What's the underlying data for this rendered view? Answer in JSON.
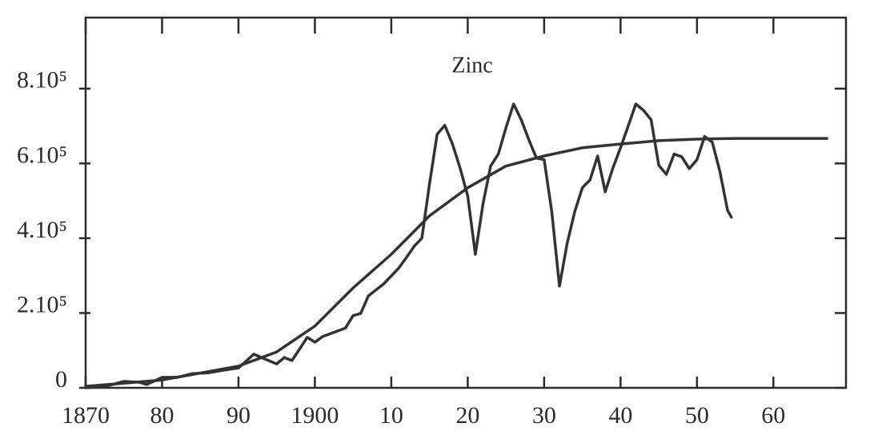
{
  "chart_data": {
    "type": "line",
    "title": "Zinc",
    "xlim": [
      1870,
      1969.5
    ],
    "ylim": [
      0,
      990000
    ],
    "xticks": [
      1870,
      {
        "value": 1880,
        "label": "80"
      },
      {
        "value": 1890,
        "label": "90"
      },
      1900,
      {
        "value": 1910,
        "label": "10"
      },
      {
        "value": 1920,
        "label": "20"
      },
      {
        "value": 1930,
        "label": "30"
      },
      {
        "value": 1940,
        "label": "40"
      },
      {
        "value": 1950,
        "label": "50"
      },
      {
        "value": 1960,
        "label": "60"
      }
    ],
    "yticks": [
      0,
      {
        "value": 200000,
        "label": "2.10⁵"
      },
      {
        "value": 400000,
        "label": "4.10⁵"
      },
      {
        "value": 600000,
        "label": "6.10⁵"
      },
      {
        "value": 800000,
        "label": "8.10⁵"
      }
    ],
    "series": [
      {
        "color": "#333333",
        "x": [
          1870,
          1873,
          1875,
          1877,
          1878,
          1880,
          1882,
          1884,
          1886,
          1888,
          1890,
          1892,
          1893,
          1895,
          1896,
          1897,
          1899,
          1900,
          1901,
          1903,
          1904,
          1905,
          1906,
          1907,
          1909,
          1911,
          1912,
          1913,
          1914,
          1915,
          1916,
          1917,
          1918,
          1919,
          1920,
          1921,
          1922,
          1923,
          1924,
          1925,
          1926,
          1927,
          1928,
          1929,
          1930,
          1931,
          1932,
          1933,
          1934,
          1935,
          1936,
          1937,
          1938,
          1939,
          1940,
          1941,
          1942,
          1943,
          1944,
          1945,
          1946,
          1947,
          1948,
          1949,
          1950,
          1951,
          1952,
          1953,
          1954,
          1954.5
        ],
        "values": [
          0,
          6000,
          17000,
          15000,
          9000,
          28000,
          28000,
          38000,
          40000,
          47000,
          53000,
          90000,
          81000,
          64000,
          81000,
          73000,
          135000,
          122000,
          137000,
          152000,
          160000,
          193000,
          199000,
          246000,
          278000,
          321000,
          349000,
          379000,
          400000,
          545000,
          678000,
          702000,
          652000,
          588000,
          513000,
          357000,
          492000,
          593000,
          625000,
          695000,
          759000,
          717000,
          663000,
          614000,
          610000,
          471000,
          272000,
          385000,
          471000,
          535000,
          556000,
          620000,
          524000,
          588000,
          642000,
          700000,
          759000,
          742000,
          717000,
          595000,
          571000,
          625000,
          618000,
          586000,
          610000,
          672000,
          657000,
          578000,
          475000,
          456000
        ]
      },
      {
        "color": "#333333",
        "x": [
          1870,
          1880,
          1890,
          1895,
          1900,
          1905,
          1910,
          1915,
          1920,
          1925,
          1930,
          1935,
          1940,
          1945,
          1950,
          1955,
          1967
        ],
        "values": [
          4000,
          21000,
          58000,
          96000,
          165000,
          267000,
          357000,
          460000,
          535000,
          593000,
          620000,
          642000,
          652000,
          661000,
          665000,
          667000,
          667000
        ]
      }
    ]
  }
}
